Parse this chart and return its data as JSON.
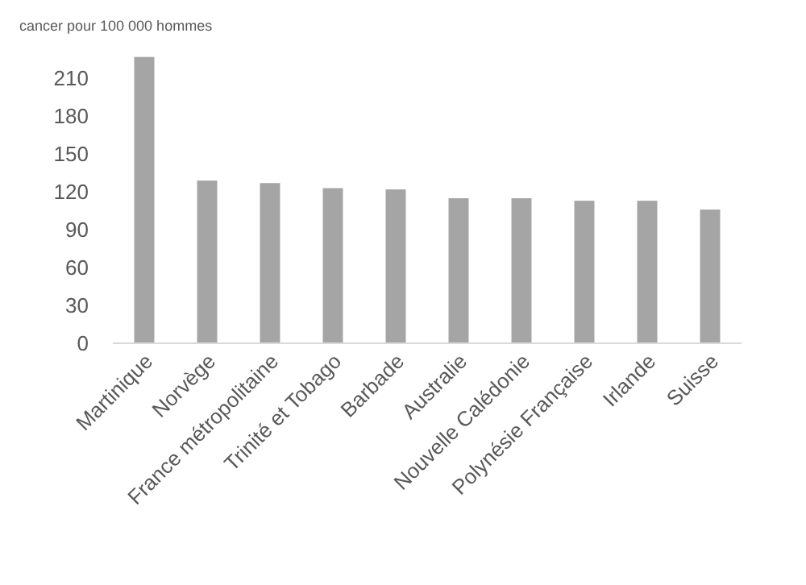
{
  "chart_data": {
    "type": "bar",
    "ylabel": "cancer pour 100 000 hommes",
    "categories": [
      "Martinique",
      "Norvège",
      "France métropolitaine",
      "Trinité et Tobago",
      "Barbade",
      "Australie",
      "Nouvelle Calédonie",
      "Polynésie Française",
      "Irlande",
      "Suisse"
    ],
    "values": [
      227,
      129,
      127,
      123,
      122,
      115,
      115,
      113,
      113,
      106
    ],
    "color": "#a5a5a5",
    "ylim": [
      0,
      230
    ],
    "yticks": [
      0,
      30,
      60,
      90,
      120,
      150,
      180,
      210
    ],
    "grid": false
  }
}
